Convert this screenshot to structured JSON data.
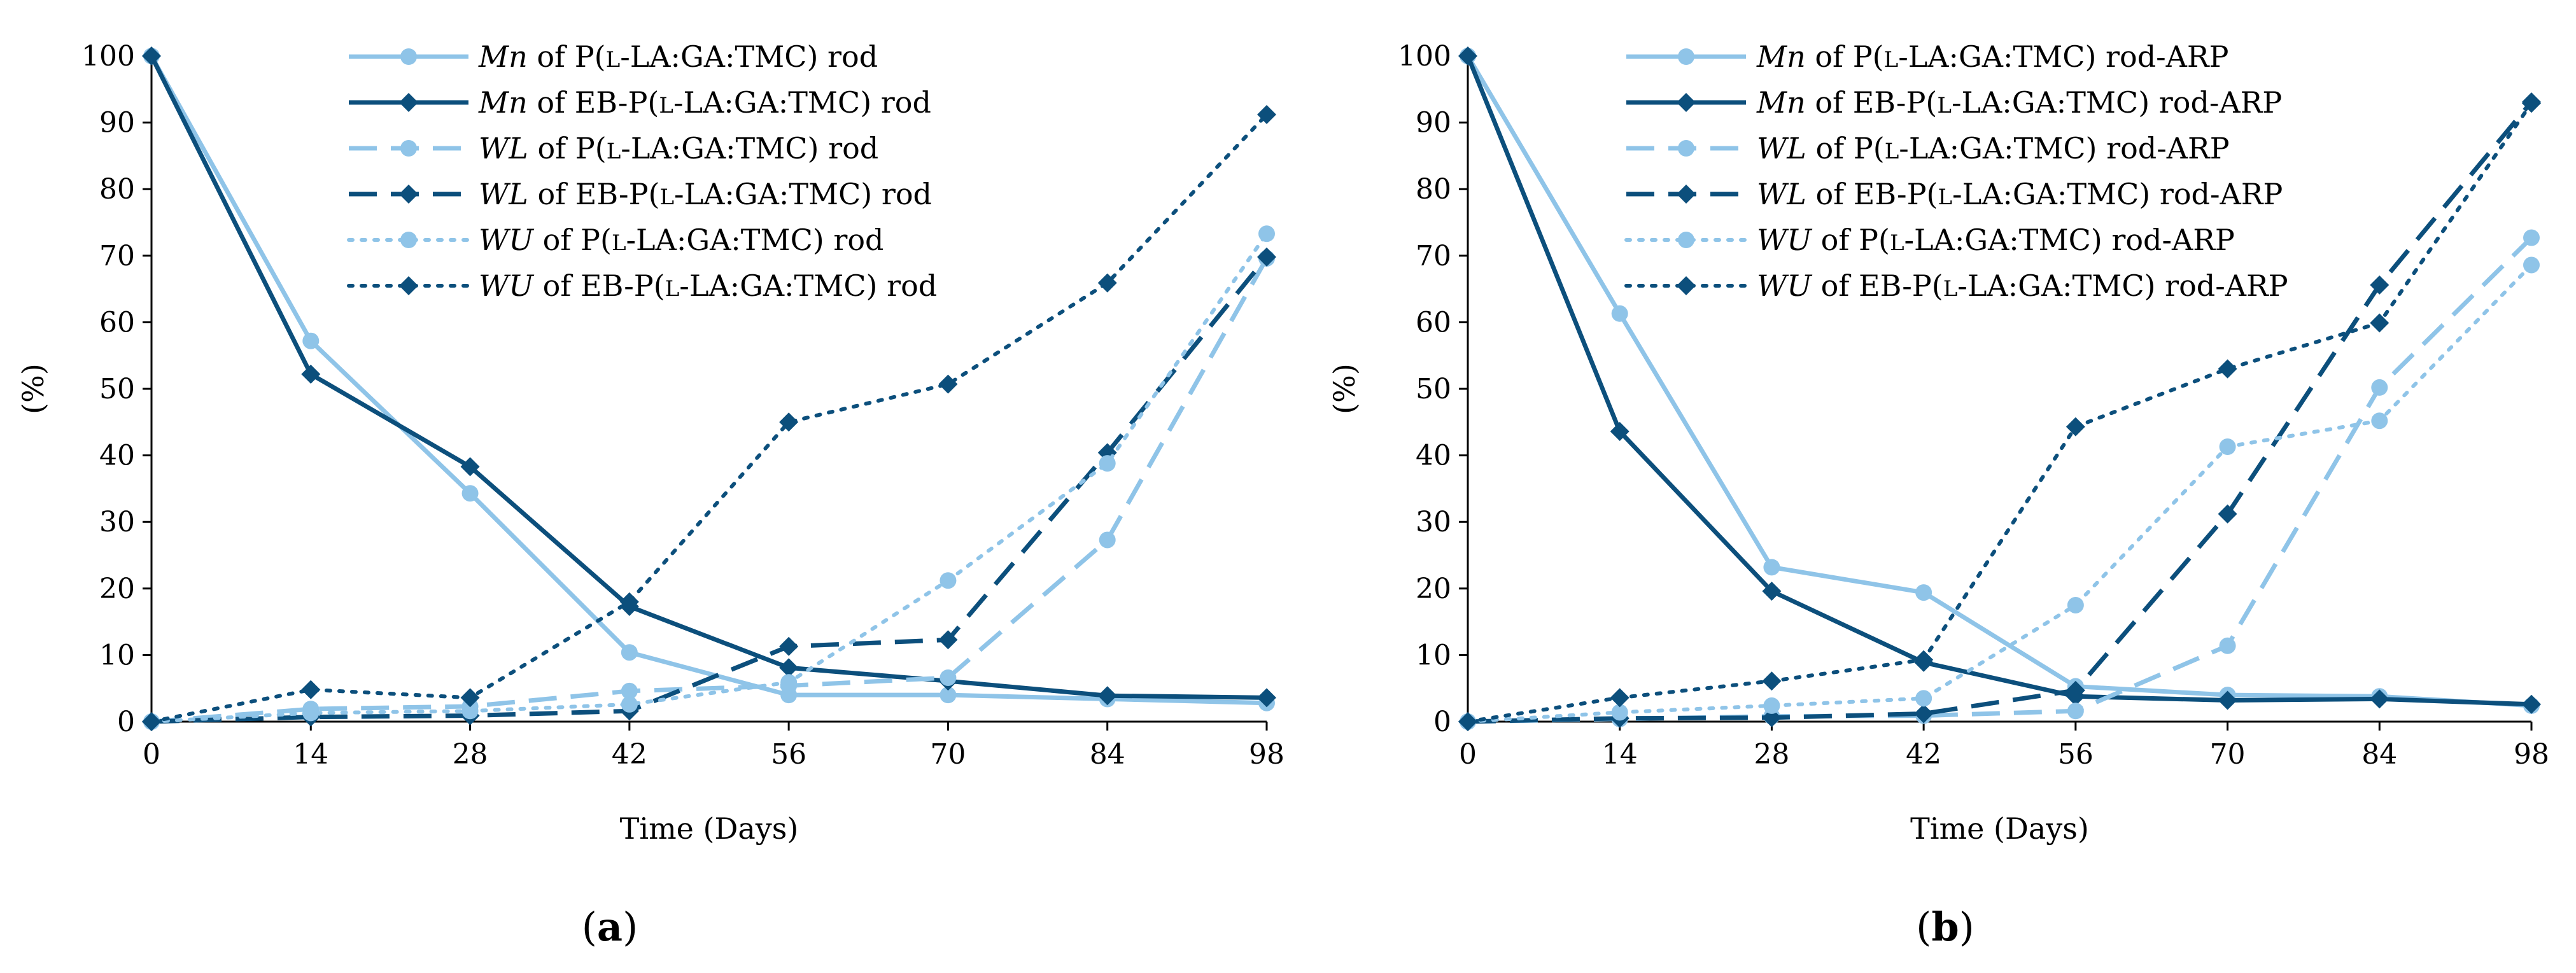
{
  "colors": {
    "light": "#8fc4e8",
    "dark": "#0c4f7c"
  },
  "chart_data": [
    {
      "type": "line",
      "panel": "a",
      "panel_label": "a",
      "xlabel": "Time (Days)",
      "ylabel": "(%)",
      "x": [
        0,
        14,
        28,
        42,
        56,
        70,
        84,
        98
      ],
      "xlim": [
        0,
        98
      ],
      "ylim": [
        0,
        100
      ],
      "x_ticks": [
        "0",
        "14",
        "28",
        "42",
        "56",
        "70",
        "84",
        "98"
      ],
      "y_ticks": [
        "0",
        "10",
        "20",
        "30",
        "40",
        "50",
        "60",
        "70",
        "80",
        "90",
        "100"
      ],
      "legend_position": "top-center",
      "series": [
        {
          "var": "Mn",
          "name": " of P(L-LA:GA:TMC) rod",
          "color": "light",
          "dash": "solid",
          "marker": "circle",
          "values": [
            100,
            57.2,
            34.3,
            10.4,
            4.0,
            4.0,
            3.4,
            2.8
          ]
        },
        {
          "var": "Mn",
          "name": " of EB-P(L-LA:GA:TMC) rod",
          "color": "dark",
          "dash": "solid",
          "marker": "diamond",
          "values": [
            100,
            52.2,
            38.3,
            17.3,
            8.1,
            6.1,
            3.9,
            3.6
          ]
        },
        {
          "var": "WL",
          "name": " of P(L-LA:GA:TMC) rod",
          "color": "light",
          "dash": "dash",
          "marker": "circle",
          "values": [
            0,
            1.9,
            2.3,
            4.6,
            5.4,
            6.6,
            27.3,
            69.6
          ]
        },
        {
          "var": "WL",
          "name": " of EB-P(L-LA:GA:TMC) rod",
          "color": "dark",
          "dash": "dash",
          "marker": "diamond",
          "values": [
            0,
            0.7,
            0.9,
            1.6,
            11.3,
            12.3,
            40.4,
            69.8
          ]
        },
        {
          "var": "WU",
          "name": " of P(L-LA:GA:TMC) rod",
          "color": "light",
          "dash": "dot",
          "marker": "circle",
          "values": [
            0,
            1.3,
            1.6,
            2.6,
            5.9,
            21.2,
            38.8,
            73.3
          ]
        },
        {
          "var": "WU",
          "name": " of EB-P(L-LA:GA:TMC) rod",
          "color": "dark",
          "dash": "dot",
          "marker": "diamond",
          "values": [
            0,
            4.8,
            3.6,
            18.0,
            45.0,
            50.7,
            65.9,
            91.2
          ]
        }
      ]
    },
    {
      "type": "line",
      "panel": "b",
      "panel_label": "b",
      "xlabel": "Time (Days)",
      "ylabel": "(%)",
      "x": [
        0,
        14,
        28,
        42,
        56,
        70,
        84,
        98
      ],
      "xlim": [
        0,
        98
      ],
      "ylim": [
        0,
        100
      ],
      "x_ticks": [
        "0",
        "14",
        "28",
        "42",
        "56",
        "70",
        "84",
        "98"
      ],
      "y_ticks": [
        "0",
        "10",
        "20",
        "30",
        "40",
        "50",
        "60",
        "70",
        "80",
        "90",
        "100"
      ],
      "legend_position": "top-center",
      "series": [
        {
          "var": "Mn",
          "name": " of P(L-LA:GA:TMC) rod-ARP",
          "color": "light",
          "dash": "solid",
          "marker": "circle",
          "values": [
            100,
            61.3,
            23.2,
            19.4,
            5.3,
            4.0,
            3.8,
            2.4
          ]
        },
        {
          "var": "Mn",
          "name": " of EB-P(L-LA:GA:TMC) rod-ARP",
          "color": "dark",
          "dash": "solid",
          "marker": "diamond",
          "values": [
            100,
            43.6,
            19.6,
            8.9,
            3.8,
            3.2,
            3.4,
            2.6
          ]
        },
        {
          "var": "WL",
          "name": " of P(L-LA:GA:TMC) rod-ARP",
          "color": "light",
          "dash": "dash",
          "marker": "circle",
          "values": [
            0,
            0.4,
            0.8,
            0.9,
            1.6,
            11.4,
            50.2,
            72.7
          ]
        },
        {
          "var": "WL",
          "name": " of EB-P(L-LA:GA:TMC) rod-ARP",
          "color": "dark",
          "dash": "dash",
          "marker": "diamond",
          "values": [
            0,
            0.5,
            0.6,
            1.2,
            4.7,
            31.2,
            65.6,
            93.1
          ]
        },
        {
          "var": "WU",
          "name": " of P(L-LA:GA:TMC) rod-ARP",
          "color": "light",
          "dash": "dot",
          "marker": "circle",
          "values": [
            0,
            1.4,
            2.4,
            3.5,
            17.5,
            41.3,
            45.2,
            68.6
          ]
        },
        {
          "var": "WU",
          "name": " of EB-P(L-LA:GA:TMC) rod-ARP",
          "color": "dark",
          "dash": "dot",
          "marker": "diamond",
          "values": [
            0,
            3.6,
            6.1,
            9.3,
            44.3,
            53.0,
            59.9,
            92.9
          ]
        }
      ]
    }
  ]
}
